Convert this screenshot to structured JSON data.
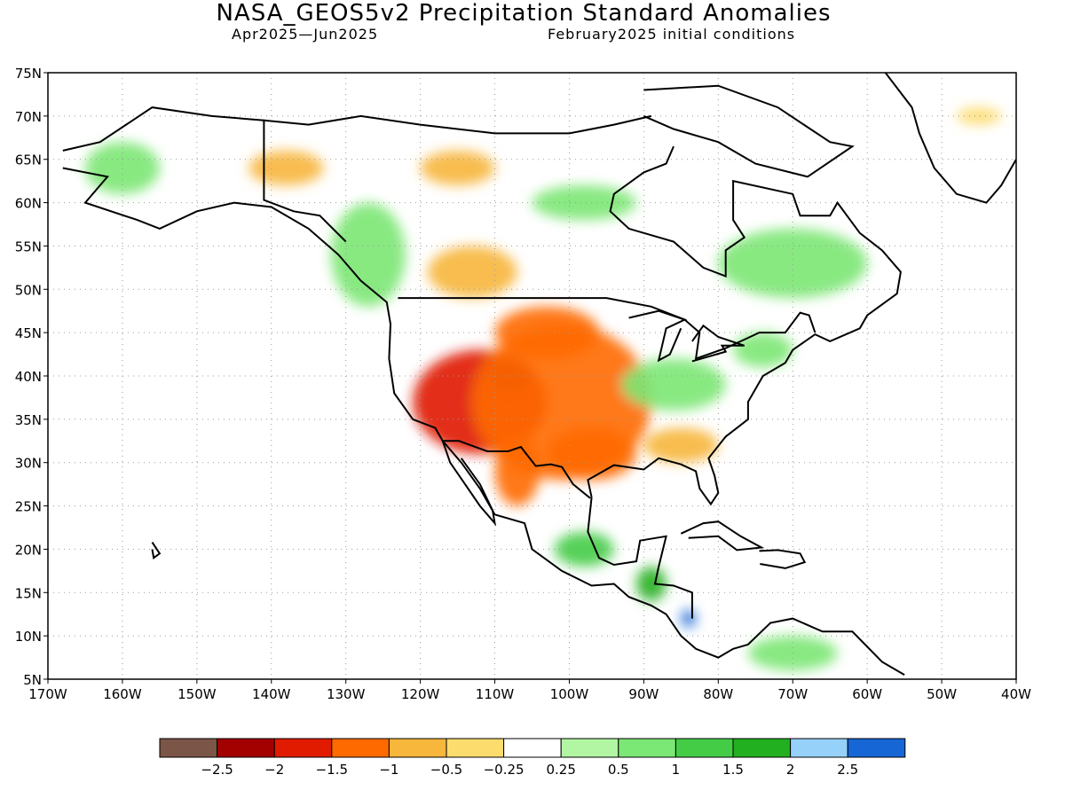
{
  "header": {
    "title": "NASA_GEOS5v2 Precipitation Standard Anomalies",
    "period": "Apr2025—Jun2025",
    "init": "February2025 initial conditions"
  },
  "map": {
    "lat_labels": [
      "75N",
      "70N",
      "65N",
      "60N",
      "55N",
      "50N",
      "45N",
      "40N",
      "35N",
      "30N",
      "25N",
      "20N",
      "15N",
      "10N",
      "5N"
    ],
    "lon_labels": [
      "170W",
      "160W",
      "150W",
      "140W",
      "130W",
      "120W",
      "110W",
      "100W",
      "90W",
      "80W",
      "70W",
      "60W",
      "50W",
      "40W"
    ],
    "extent": {
      "lon": [
        -170,
        -40
      ],
      "lat": [
        5,
        75
      ]
    },
    "grid": "dotted",
    "regions": [
      {
        "name": "great-basin-southwest",
        "lon": -112,
        "lat": 37,
        "rlon": 9,
        "rlat": 6,
        "level": "-1.5"
      },
      {
        "name": "colorado-core",
        "lon": -108,
        "lat": 40,
        "rlon": 3,
        "rlat": 2,
        "level": "-2"
      },
      {
        "name": "great-plains",
        "lon": -101,
        "lat": 37,
        "rlon": 12,
        "rlat": 9,
        "level": "-1"
      },
      {
        "name": "northern-plains",
        "lon": -103,
        "lat": 45,
        "rlon": 7,
        "rlat": 3,
        "level": "-1"
      },
      {
        "name": "texas-gulf",
        "lon": -97,
        "lat": 31,
        "rlon": 6,
        "rlat": 3,
        "level": "-1"
      },
      {
        "name": "southeast-us",
        "lon": -85,
        "lat": 32,
        "rlon": 5,
        "rlat": 2,
        "level": "-0.5"
      },
      {
        "name": "ohio-valley",
        "lon": -86,
        "lat": 39,
        "rlon": 7,
        "rlat": 3,
        "level": "0.5"
      },
      {
        "name": "northeast-us",
        "lon": -74,
        "lat": 43,
        "rlon": 4,
        "rlat": 2,
        "level": "0.5"
      },
      {
        "name": "quebec-labrador",
        "lon": -70,
        "lat": 53,
        "rlon": 10,
        "rlat": 4,
        "level": "0.5"
      },
      {
        "name": "pacific-northwest-coast",
        "lon": -127,
        "lat": 54,
        "rlon": 5,
        "rlat": 6,
        "level": "0.5"
      },
      {
        "name": "hudson-west",
        "lon": -98,
        "lat": 60,
        "rlon": 7,
        "rlat": 2,
        "level": "0.5"
      },
      {
        "name": "yukon-dry",
        "lon": -138,
        "lat": 64,
        "rlon": 5,
        "rlat": 2,
        "level": "-0.5"
      },
      {
        "name": "nwt-dry",
        "lon": -115,
        "lat": 64,
        "rlon": 5,
        "rlat": 2,
        "level": "-0.5"
      },
      {
        "name": "alaska-west",
        "lon": -160,
        "lat": 64,
        "rlon": 5,
        "rlat": 3,
        "level": "0.5"
      },
      {
        "name": "prairies-dry",
        "lon": -113,
        "lat": 52,
        "rlon": 6,
        "rlat": 3,
        "level": "-0.5"
      },
      {
        "name": "mexico-west-dry",
        "lon": -107,
        "lat": 29,
        "rlon": 3,
        "rlat": 4,
        "level": "-1"
      },
      {
        "name": "mexico-south",
        "lon": -98,
        "lat": 20,
        "rlon": 4,
        "rlat": 2,
        "level": "1"
      },
      {
        "name": "central-america",
        "lon": -89,
        "lat": 16,
        "rlon": 2,
        "rlat": 2,
        "level": "1.5"
      },
      {
        "name": "central-america-wet",
        "lon": -84,
        "lat": 12,
        "rlon": 1,
        "rlat": 1,
        "level": "2.5"
      },
      {
        "name": "south-america-north",
        "lon": -70,
        "lat": 8,
        "rlon": 6,
        "rlat": 2,
        "level": "0.5"
      },
      {
        "name": "greenland-east",
        "lon": -45,
        "lat": 70,
        "rlon": 3,
        "rlat": 1,
        "level": "-0.25"
      }
    ]
  },
  "legend": {
    "colors": [
      "#7b5548",
      "#a30000",
      "#e01b00",
      "#ff6a00",
      "#f7b63c",
      "#fddc6e",
      "#ffffff",
      "#b2f5a3",
      "#7be774",
      "#44cc47",
      "#22b020",
      "#96d1fa",
      "#1666d6"
    ],
    "labels": [
      "−2.5",
      "−2",
      "−1.5",
      "−1",
      "−0.5",
      "−0.25",
      "0.25",
      "0.5",
      "1",
      "1.5",
      "2",
      "2.5"
    ]
  }
}
